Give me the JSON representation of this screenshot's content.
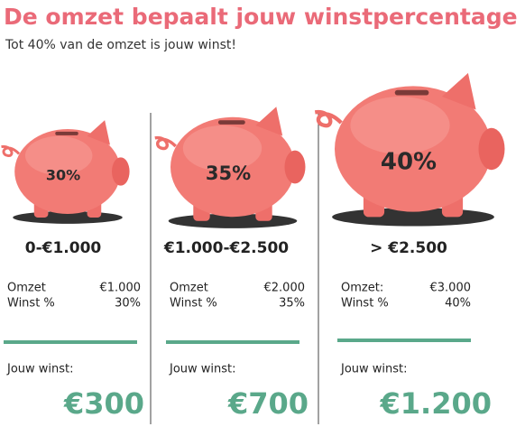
{
  "title": "De omzet bepaalt jouw winstpercentage",
  "subtitle": "Tot 40% van de omzet is jouw winst!",
  "tiers": [
    {
      "percent": "30%",
      "range": "0-€1.000",
      "omzet_label": "Omzet",
      "omzet": "€1.000",
      "winst_label": "Winst %",
      "winst": "30%",
      "jouw_winst_label": "Jouw winst:",
      "result": "€300"
    },
    {
      "percent": "35%",
      "range": "€1.000-€2.500",
      "omzet_label": "Omzet",
      "omzet": "€2.000",
      "winst_label": "Winst %",
      "winst": "35%",
      "jouw_winst_label": "Jouw winst:",
      "result": "€700"
    },
    {
      "percent": "40%",
      "range": "> €2.500",
      "omzet_label": "Omzet:",
      "omzet": "€3.000",
      "winst_label": "Winst %",
      "winst": "40%",
      "jouw_winst_label": "Jouw winst:",
      "result": "€1.200"
    }
  ]
}
